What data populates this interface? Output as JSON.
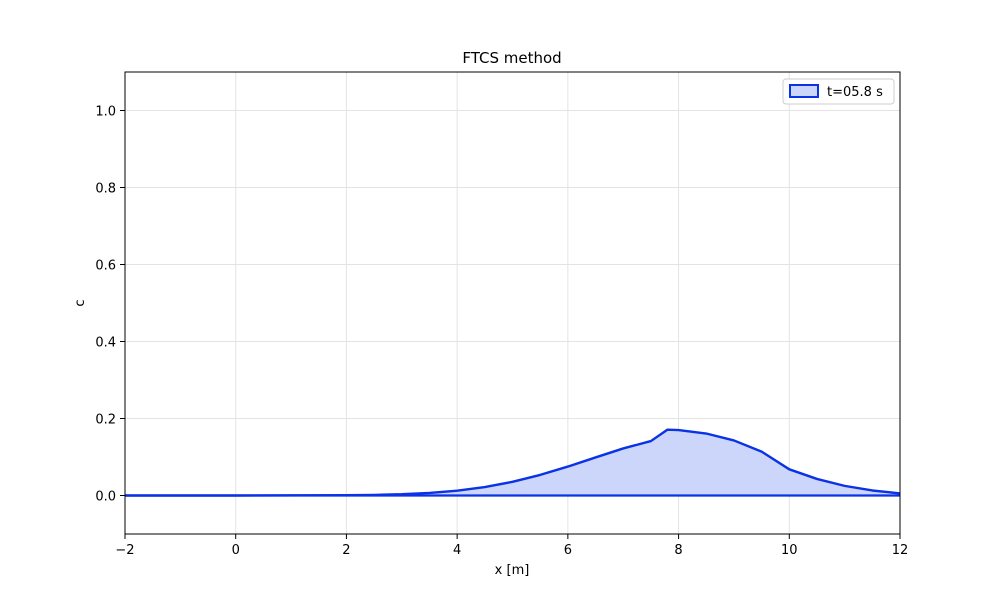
{
  "chart_data": {
    "type": "area",
    "title": "FTCS method",
    "xlabel": "x [m]",
    "ylabel": "c",
    "xlim": [
      -2,
      12
    ],
    "ylim": [
      -0.1,
      1.1
    ],
    "xticks": [
      -2,
      0,
      2,
      4,
      6,
      8,
      10,
      12
    ],
    "yticks": [
      0.0,
      0.2,
      0.4,
      0.6,
      0.8,
      1.0
    ],
    "xtick_labels": [
      "−2",
      "0",
      "2",
      "4",
      "6",
      "8",
      "10",
      "12"
    ],
    "ytick_labels": [
      "0.0",
      "0.2",
      "0.4",
      "0.6",
      "0.8",
      "1.0"
    ],
    "grid": true,
    "legend_position": "top-right",
    "series": [
      {
        "name": "t=05.8 s",
        "line_color": "#0a32e6",
        "fill_color": "#cbd6fa",
        "x": [
          -2,
          0,
          2,
          2.5,
          3,
          3.5,
          4,
          4.5,
          5,
          5.5,
          6,
          6.5,
          7,
          7.5,
          7.8,
          8,
          8.5,
          9,
          9.5,
          10,
          10.5,
          11,
          11.5,
          12
        ],
        "y": [
          0.0,
          0.0,
          0.0007,
          0.0015,
          0.0033,
          0.0067,
          0.0125,
          0.0218,
          0.0355,
          0.0535,
          0.0751,
          0.0989,
          0.1222,
          0.1414,
          0.171,
          0.17,
          0.161,
          0.143,
          0.114,
          0.068,
          0.043,
          0.025,
          0.013,
          0.0055
        ]
      }
    ]
  }
}
